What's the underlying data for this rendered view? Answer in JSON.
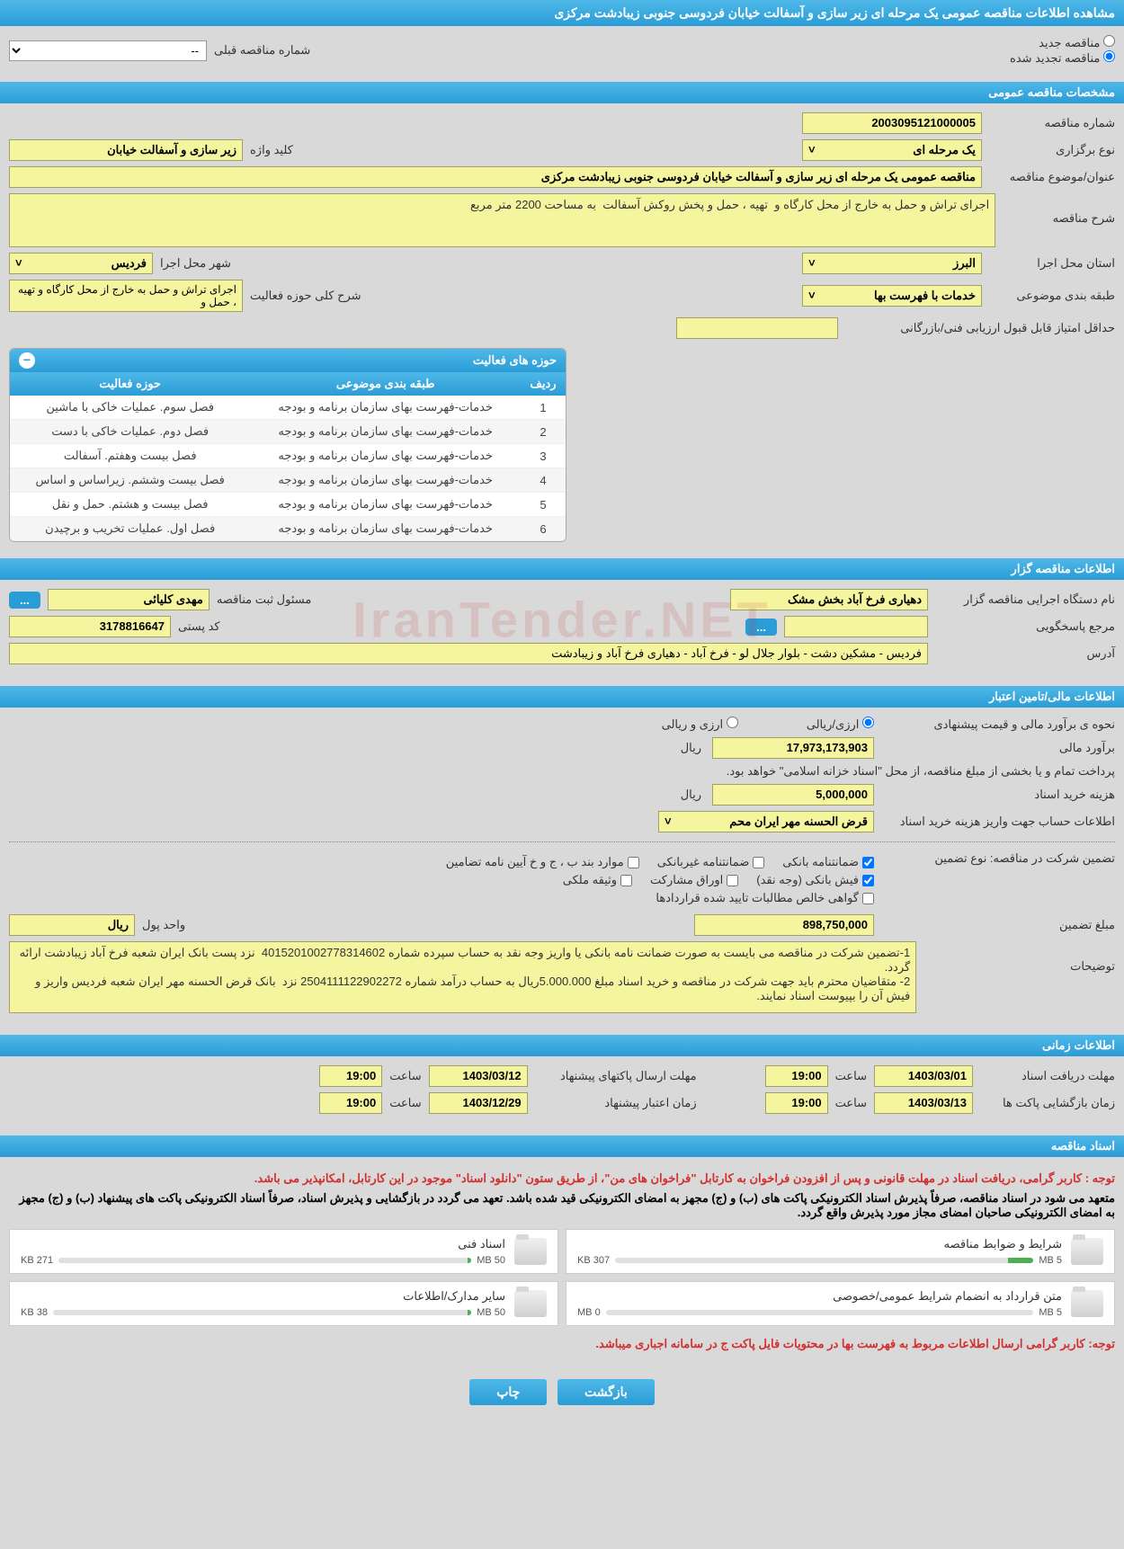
{
  "page_title": "مشاهده اطلاعات مناقصه عمومی یک مرحله ای زیر سازی و آسفالت خیابان فردوسی جنوبی زیبادشت مرکزی",
  "tender_type": {
    "new": "مناقصه جدید",
    "renewed": "مناقصه تجدید شده",
    "prev_label": "شماره مناقصه قبلی",
    "prev_placeholder": "--"
  },
  "sec_general": "مشخصات مناقصه عمومی",
  "general": {
    "number_label": "شماره مناقصه",
    "number": "2003095121000005",
    "holding_type_label": "نوع برگزاری",
    "holding_type": "یک مرحله ای",
    "keyword_label": "کلید واژه",
    "keyword": "زیر سازی و آسفالت خیابان",
    "subject_label": "عنوان/موضوع مناقصه",
    "subject": "مناقصه عمومی یک مرحله ای زیر سازی و آسفالت خیابان فردوسی جنوبی زیبادشت مرکزی",
    "desc_label": "شرح مناقصه",
    "desc": "اجرای تراش و حمل به خارج از محل کارگاه و  تهیه ، حمل و پخش روکش آسفالت  به مساحت 2200 متر مربع",
    "province_label": "استان محل اجرا",
    "province": "البرز",
    "city_label": "شهر محل اجرا",
    "city": "فردیس",
    "subject_class_label": "طبقه بندی موضوعی",
    "subject_class": "خدمات با فهرست بها",
    "activity_desc_label": "شرح کلی حوزه فعالیت",
    "activity_desc": "اجرای تراش و حمل به خارج از محل کارگاه و  تهیه ، حمل و",
    "min_score_label": "حداقل امتیاز قابل قبول ارزیابی فنی/بازرگانی"
  },
  "activity_panel": {
    "title": "حوزه های فعالیت",
    "col_row": "ردیف",
    "col_class": "طبقه بندی موضوعی",
    "col_scope": "حوزه فعالیت",
    "rows": [
      {
        "n": "1",
        "c": "خدمات-فهرست بهای سازمان برنامه و بودجه",
        "s": "فصل سوم. عملیات خاکی با ماشین"
      },
      {
        "n": "2",
        "c": "خدمات-فهرست بهای سازمان برنامه و بودجه",
        "s": "فصل دوم. عملیات خاکی با دست"
      },
      {
        "n": "3",
        "c": "خدمات-فهرست بهای سازمان برنامه و بودجه",
        "s": "فصل بیست وهفتم. آسفالت"
      },
      {
        "n": "4",
        "c": "خدمات-فهرست بهای سازمان برنامه و بودجه",
        "s": "فصل بیست وششم. زیراساس و اساس"
      },
      {
        "n": "5",
        "c": "خدمات-فهرست بهای سازمان برنامه و بودجه",
        "s": "فصل بیست و هشتم. حمل و نقل"
      },
      {
        "n": "6",
        "c": "خدمات-فهرست بهای سازمان برنامه و بودجه",
        "s": "فصل اول. عملیات تخریب و برچیدن"
      }
    ]
  },
  "sec_organizer": "اطلاعات مناقصه گزار",
  "organizer": {
    "agency_label": "نام دستگاه اجرایی مناقصه گزار",
    "agency": "دهیاری فرخ آباد بخش مشک",
    "reg_officer_label": "مسئول ثبت مناقصه",
    "reg_officer": "مهدی کلیائی",
    "inquiry_label": "مرجع پاسخگویی",
    "postal_label": "کد پستی",
    "postal": "3178816647",
    "address_label": "آدرس",
    "address": "فردیس - مشکین دشت - بلوار جلال لو - فرخ آباد - دهیاری فرخ آباد و زیبادشت"
  },
  "sec_finance": "اطلاعات مالی/تامین اعتبار",
  "finance": {
    "method_label": "نحوه ی برآورد مالی و قیمت پیشنهادی",
    "opt_fx_rial": "ارزی/ریالی",
    "opt_fx_and_rial": "ارزی و ریالی",
    "est_label": "برآورد مالی",
    "est": "17,973,173,903",
    "unit_rial": "ریال",
    "treasury_note": "پرداخت تمام و یا بخشی از مبلغ مناقصه، از محل \"اسناد خزانه اسلامی\" خواهد بود.",
    "doc_fee_label": "هزینه خرید اسناد",
    "doc_fee": "5,000,000",
    "deposit_account_label": "اطلاعات حساب جهت واریز هزینه خرید اسناد",
    "deposit_account": "قرض الحسنه مهر ایران محم",
    "guarantee_label": "تضمین شرکت در مناقصه:   نوع تضمین",
    "g1": "ضمانتنامه بانکی",
    "g2": "ضمانتنامه غیربانکی",
    "g3": "موارد بند ب ، ج و خ آیین نامه تضامین",
    "g4": "فیش بانکی (وجه نقد)",
    "g5": "اوراق مشارکت",
    "g6": "وثیقه ملکی",
    "g7": "گواهی خالص مطالبات تایید شده قراردادها",
    "amount_label": "مبلغ تضمین",
    "amount": "898,750,000",
    "money_unit_label": "واحد پول",
    "money_unit": "ریال",
    "notes_label": "توضیحات",
    "notes": "1-تضمین شرکت در مناقصه می بایست به صورت ضمانت نامه بانکی یا واریز وجه نقد به حساب سپرده شماره 4015201002778314602  نزد پست بانک ایران شعبه فرخ آباد زیبادشت ارائه گردد.\n2- متقاضیان محترم باید جهت شرکت در مناقصه و خرید اسناد مبلغ 5.000.000ریال به حساب درآمد شماره 2504111122902272 نزد  بانک قرض الحسنه مهر ایران شعبه فردیس واریز و فیش آن را بپیوست اسناد نمایند."
  },
  "sec_time": "اطلاعات زمانی",
  "time": {
    "receive_label": "مهلت دریافت اسناد",
    "receive_date": "1403/03/01",
    "hour_label": "ساعت",
    "receive_hour": "19:00",
    "submit_label": "مهلت ارسال پاکتهای پیشنهاد",
    "submit_date": "1403/03/12",
    "submit_hour": "19:00",
    "open_label": "زمان بازگشایی پاکت ها",
    "open_date": "1403/03/13",
    "open_hour": "19:00",
    "validity_label": "زمان اعتبار پیشنهاد",
    "validity_date": "1403/12/29",
    "validity_hour": "19:00"
  },
  "sec_docs": "اسناد مناقصه",
  "docs": {
    "notice1": "توجه : کاربر گرامی، دریافت اسناد در مهلت قانونی و پس از افزودن فراخوان به کارتابل \"فراخوان های من\"، از طریق ستون \"دانلود اسناد\" موجود در این کارتابل، امکانپذیر می باشد.",
    "notice2": "متعهد می شود در اسناد مناقصه، صرفاً پذیرش اسناد الکترونیکی پاکت های (ب) و (ج) مجهز به امضای الکترونیکی قید شده باشد. تعهد می گردد در بازگشایی و پذیرش اسناد، صرفاً اسناد الکترونیکی پاکت های پیشنهاد (ب) و (ج) مجهز به امضای الکترونیکی صاحبان امضای مجاز مورد پذیرش واقع گردد.",
    "notice3": "توجه: کاربر گرامی ارسال اطلاعات مربوط به فهرست بها در محتویات فایل پاکت ج در سامانه اجباری میباشد.",
    "tiles": [
      {
        "title": "شرایط و ضوابط مناقصه",
        "size": "307 KB",
        "max": "5 MB",
        "pct": 6
      },
      {
        "title": "اسناد فنی",
        "size": "271 KB",
        "max": "50 MB",
        "pct": 1
      },
      {
        "title": "متن قرارداد به انضمام شرایط عمومی/خصوصی",
        "size": "0 MB",
        "max": "5 MB",
        "pct": 0
      },
      {
        "title": "سایر مدارک/اطلاعات",
        "size": "38 KB",
        "max": "50 MB",
        "pct": 1
      }
    ]
  },
  "buttons": {
    "back": "بازگشت",
    "print": "چاپ"
  },
  "watermark": "IranTender.NET"
}
